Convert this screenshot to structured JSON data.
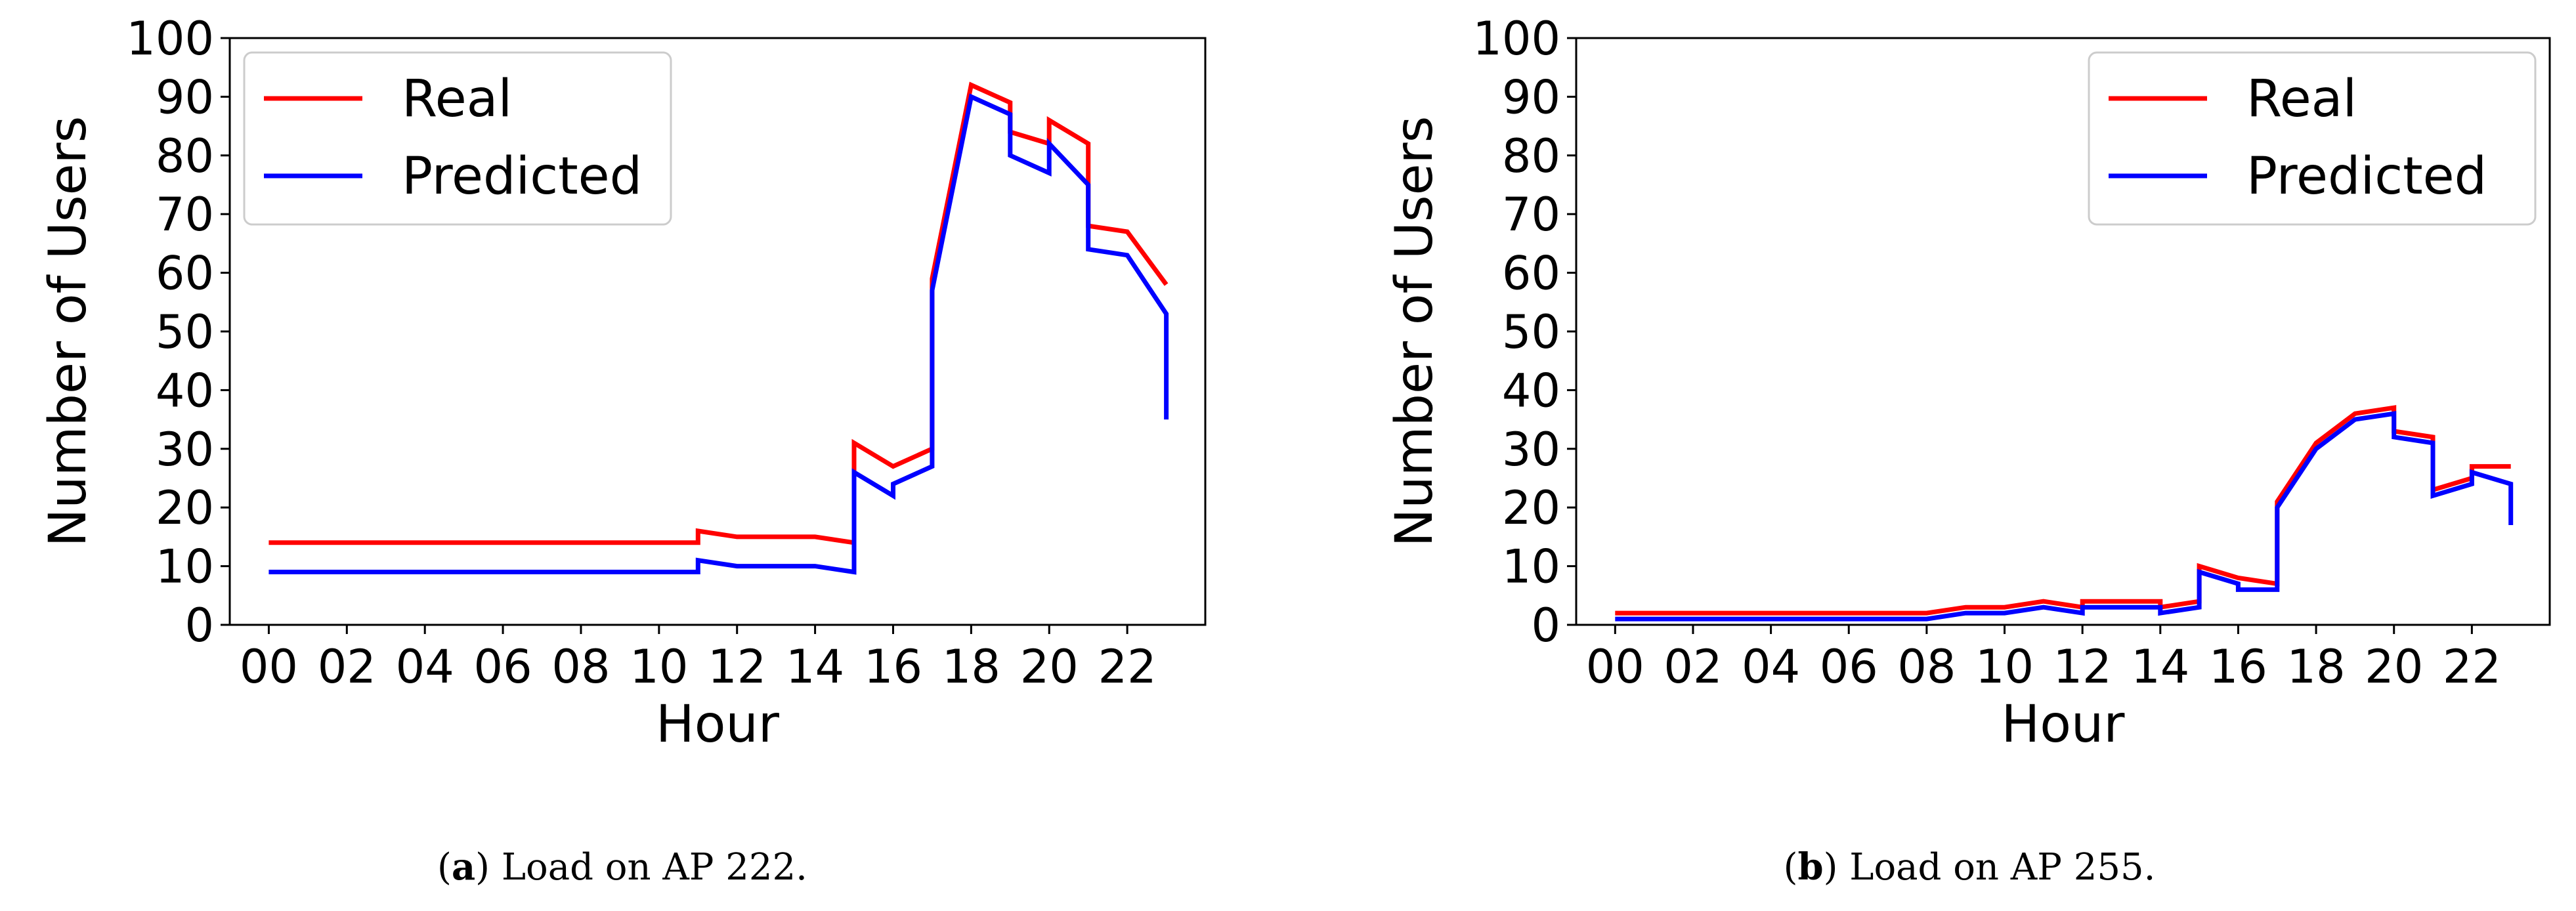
{
  "chart_data": [
    {
      "type": "line",
      "caption_label": "a",
      "caption_text": "Load on AP 222.",
      "xlabel": "Hour",
      "ylabel": "Number of Users",
      "ylim": [
        0,
        100
      ],
      "yticks": [
        "0",
        "10",
        "20",
        "30",
        "40",
        "50",
        "60",
        "70",
        "80",
        "90",
        "100"
      ],
      "xlim": [
        -1,
        24
      ],
      "xticks": [
        "00",
        "02",
        "04",
        "06",
        "08",
        "10",
        "12",
        "14",
        "16",
        "18",
        "20",
        "22"
      ],
      "legend_position": "upper left",
      "grid": false,
      "series": [
        {
          "name": "Real",
          "color": "#ff0000",
          "x": [
            0,
            11,
            11,
            12,
            14,
            15,
            15,
            16,
            17,
            17,
            18,
            19,
            19,
            20,
            20,
            21,
            21,
            22,
            23
          ],
          "y": [
            14,
            14,
            16,
            15,
            15,
            14,
            31,
            27,
            30,
            59,
            92,
            89,
            84,
            82,
            86,
            82,
            68,
            67,
            58
          ]
        },
        {
          "name": "Predicted",
          "color": "#0000ff",
          "x": [
            0,
            11,
            11,
            12,
            14,
            15,
            15,
            16,
            16,
            17,
            17,
            18,
            19,
            19,
            20,
            20,
            21,
            21,
            22,
            23,
            23
          ],
          "y": [
            9,
            9,
            11,
            10,
            10,
            9,
            26,
            22,
            24,
            27,
            57,
            90,
            87,
            80,
            77,
            82,
            75,
            64,
            63,
            53,
            35
          ]
        }
      ]
    },
    {
      "type": "line",
      "caption_label": "b",
      "caption_text": "Load on AP 255.",
      "xlabel": "Hour",
      "ylabel": "Number of Users",
      "ylim": [
        0,
        100
      ],
      "yticks": [
        "0",
        "10",
        "20",
        "30",
        "40",
        "50",
        "60",
        "70",
        "80",
        "90",
        "100"
      ],
      "xlim": [
        -1,
        24
      ],
      "xticks": [
        "00",
        "02",
        "04",
        "06",
        "08",
        "10",
        "12",
        "14",
        "16",
        "18",
        "20",
        "22"
      ],
      "legend_position": "upper right",
      "grid": false,
      "series": [
        {
          "name": "Real",
          "color": "#ff0000",
          "x": [
            0,
            8,
            9,
            10,
            11,
            12,
            12,
            14,
            14,
            15,
            15,
            16,
            17,
            17,
            18,
            19,
            20,
            20,
            21,
            21,
            22,
            22,
            23
          ],
          "y": [
            2,
            2,
            3,
            3,
            4,
            3,
            4,
            4,
            3,
            4,
            10,
            8,
            7,
            21,
            31,
            36,
            37,
            33,
            32,
            23,
            25,
            27,
            27
          ]
        },
        {
          "name": "Predicted",
          "color": "#0000ff",
          "x": [
            0,
            8,
            9,
            10,
            11,
            12,
            12,
            14,
            14,
            15,
            15,
            16,
            16,
            17,
            17,
            18,
            19,
            20,
            20,
            21,
            21,
            22,
            22,
            23,
            23
          ],
          "y": [
            1,
            1,
            2,
            2,
            3,
            2,
            3,
            3,
            2,
            3,
            9,
            7,
            6,
            6,
            20,
            30,
            35,
            36,
            32,
            31,
            22,
            24,
            26,
            24,
            17
          ]
        }
      ]
    }
  ]
}
